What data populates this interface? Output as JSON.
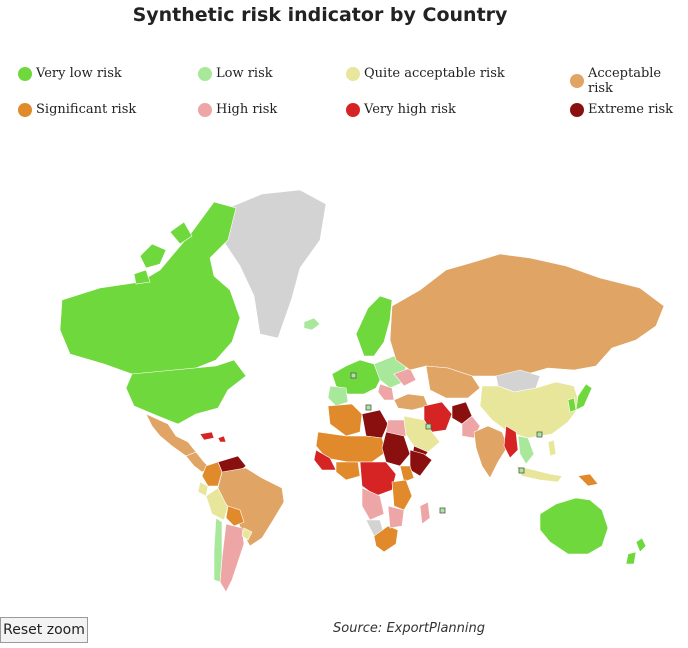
{
  "title": "Synthetic risk indicator by Country",
  "legend": [
    {
      "label": "Very low risk",
      "color": "#6fd83c"
    },
    {
      "label": "Low risk",
      "color": "#a8e89a"
    },
    {
      "label": "Quite acceptable risk",
      "color": "#e8e69a"
    },
    {
      "label": "Acceptable risk",
      "color": "#e0a464"
    },
    {
      "label": "Significant risk",
      "color": "#e08a2c"
    },
    {
      "label": "High risk",
      "color": "#eea5a5"
    },
    {
      "label": "Very high risk",
      "color": "#d62424"
    },
    {
      "label": "Extreme risk",
      "color": "#8a1010"
    }
  ],
  "no_data_color": "#d3d3d3",
  "reset_zoom_label": "Reset zoom",
  "source": "Source: ExportPlanning"
}
